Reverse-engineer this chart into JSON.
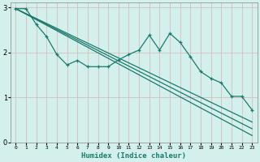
{
  "xlabel": "Humidex (Indice chaleur)",
  "bg_color": "#d4f0ec",
  "line_color": "#1a7a6e",
  "grid_color": "#b8ddd8",
  "xlim": [
    -0.5,
    23.5
  ],
  "ylim": [
    0,
    3.1
  ],
  "yticks": [
    0,
    1,
    2,
    3
  ],
  "xticks": [
    0,
    1,
    2,
    3,
    4,
    5,
    6,
    7,
    8,
    9,
    10,
    11,
    12,
    13,
    14,
    15,
    16,
    17,
    18,
    19,
    20,
    21,
    22,
    23
  ],
  "series1_x": [
    0,
    1,
    2,
    3,
    4,
    5,
    6,
    7,
    8,
    9,
    10,
    11,
    12,
    13,
    14,
    15,
    16,
    17,
    18,
    19,
    20,
    21,
    22,
    23
  ],
  "series1_y": [
    2.97,
    2.97,
    2.62,
    2.35,
    1.95,
    1.72,
    1.82,
    1.68,
    1.68,
    1.68,
    1.83,
    1.95,
    2.05,
    2.38,
    2.05,
    2.42,
    2.22,
    1.9,
    1.57,
    1.42,
    1.32,
    1.02,
    1.02,
    0.72
  ],
  "series2_x": [
    0,
    23
  ],
  "series2_y": [
    2.97,
    0.15
  ],
  "series3_x": [
    0,
    23
  ],
  "series3_y": [
    2.97,
    0.3
  ],
  "series4_x": [
    0,
    23
  ],
  "series4_y": [
    2.97,
    0.45
  ]
}
